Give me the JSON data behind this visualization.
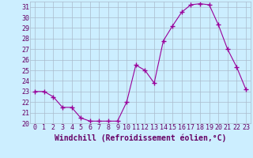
{
  "x": [
    0,
    1,
    2,
    3,
    4,
    5,
    6,
    7,
    8,
    9,
    10,
    11,
    12,
    13,
    14,
    15,
    16,
    17,
    18,
    19,
    20,
    21,
    22,
    23
  ],
  "y": [
    23.0,
    23.0,
    22.5,
    21.5,
    21.5,
    20.5,
    20.2,
    20.2,
    20.2,
    20.2,
    22.0,
    25.5,
    25.0,
    23.8,
    27.8,
    29.2,
    30.5,
    31.2,
    31.3,
    31.2,
    29.3,
    27.0,
    25.3,
    23.2
  ],
  "xlabel": "Windchill (Refroidissement éolien,°C)",
  "ylim": [
    20,
    31.5
  ],
  "xlim": [
    -0.5,
    23.5
  ],
  "yticks": [
    20,
    21,
    22,
    23,
    24,
    25,
    26,
    27,
    28,
    29,
    30,
    31
  ],
  "xticks": [
    0,
    1,
    2,
    3,
    4,
    5,
    6,
    7,
    8,
    9,
    10,
    11,
    12,
    13,
    14,
    15,
    16,
    17,
    18,
    19,
    20,
    21,
    22,
    23
  ],
  "line_color": "#990099",
  "marker": "+",
  "marker_size": 4,
  "marker_lw": 1.0,
  "bg_color": "#cceeff",
  "grid_color": "#aabbcc",
  "label_color": "#660066",
  "xlabel_fontsize": 7,
  "tick_fontsize": 6,
  "line_width": 0.8
}
